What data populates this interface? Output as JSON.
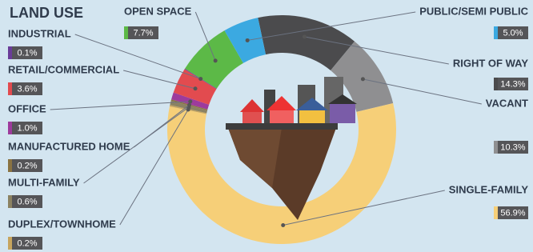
{
  "chart_data": {
    "type": "pie",
    "title": "LAND USE",
    "categories": [
      "RIGHT OF WAY",
      "VACANT",
      "SINGLE-FAMILY",
      "DUPLEX/TOWNHOME",
      "MULTI-FAMILY",
      "MANUFACTURED HOME",
      "OFFICE",
      "RETAIL/COMMERCIAL",
      "INDUSTRIAL",
      "OPEN SPACE",
      "PUBLIC/SEMI PUBLIC"
    ],
    "values": [
      14.3,
      10.3,
      56.9,
      0.2,
      0.6,
      0.2,
      1.0,
      3.6,
      0.1,
      7.7,
      5.0
    ],
    "value_labels": [
      "14.3%",
      "10.3%",
      "56.9%",
      "0.2%",
      "0.6%",
      "0.2%",
      "1.0%",
      "3.6%",
      "0.1%",
      "7.7%",
      "5.0%"
    ],
    "colors": [
      "#4b4b4d",
      "#8f8f91",
      "#f6cf78",
      "#c7a55e",
      "#8b8262",
      "#8a7342",
      "#9d3b9c",
      "#e24b4f",
      "#6a3c98",
      "#5cb947",
      "#3ba9e1"
    ]
  }
}
